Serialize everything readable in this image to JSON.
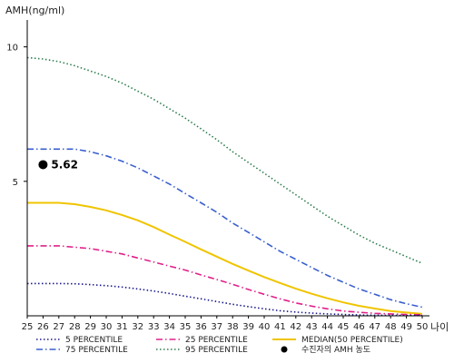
{
  "chart_data": {
    "type": "line",
    "ylabel": "AMH(ng/ml)",
    "xlabel": "나이",
    "xlim": [
      25,
      50
    ],
    "ylim": [
      0,
      11
    ],
    "x_ticks": [
      25,
      26,
      27,
      28,
      29,
      30,
      31,
      32,
      33,
      34,
      35,
      36,
      37,
      38,
      39,
      40,
      41,
      42,
      43,
      44,
      45,
      46,
      47,
      48,
      49,
      50
    ],
    "y_ticks": [
      5,
      10
    ],
    "x": [
      25,
      26,
      27,
      28,
      29,
      30,
      31,
      32,
      33,
      34,
      35,
      36,
      37,
      38,
      39,
      40,
      41,
      42,
      43,
      44,
      45,
      46,
      47,
      48,
      49,
      50
    ],
    "series": [
      {
        "name": "95 PERCENTILE",
        "color": "#2e7d4f",
        "dash": "dotted",
        "values": [
          9.6,
          9.55,
          9.45,
          9.3,
          9.1,
          8.9,
          8.65,
          8.35,
          8.05,
          7.7,
          7.35,
          6.95,
          6.55,
          6.1,
          5.7,
          5.3,
          4.9,
          4.5,
          4.1,
          3.7,
          3.35,
          3.0,
          2.7,
          2.45,
          2.2,
          1.95
        ]
      },
      {
        "name": "75 PERCENTILE",
        "color": "#3a5fcd",
        "dash": "dashdot",
        "values": [
          6.2,
          6.2,
          6.2,
          6.2,
          6.1,
          5.95,
          5.75,
          5.5,
          5.2,
          4.9,
          4.55,
          4.2,
          3.85,
          3.45,
          3.1,
          2.75,
          2.4,
          2.1,
          1.8,
          1.5,
          1.25,
          1.0,
          0.8,
          0.6,
          0.45,
          0.32
        ]
      },
      {
        "name": "MEDIAN(50 PERCENTILE)",
        "color": "#f0c400",
        "dash": "solid",
        "values": [
          4.2,
          4.2,
          4.2,
          4.15,
          4.05,
          3.92,
          3.75,
          3.55,
          3.3,
          3.02,
          2.75,
          2.47,
          2.2,
          1.93,
          1.68,
          1.44,
          1.22,
          1.01,
          0.82,
          0.65,
          0.5,
          0.37,
          0.27,
          0.18,
          0.12,
          0.07
        ]
      },
      {
        "name": "25 PERCENTILE",
        "color": "#e0218a",
        "dash": "dashdot",
        "values": [
          2.6,
          2.6,
          2.6,
          2.55,
          2.5,
          2.4,
          2.3,
          2.15,
          2.0,
          1.85,
          1.7,
          1.52,
          1.35,
          1.17,
          0.98,
          0.8,
          0.63,
          0.48,
          0.36,
          0.26,
          0.18,
          0.13,
          0.09,
          0.07,
          0.05,
          0.04
        ]
      },
      {
        "name": "5 PERCENTILE",
        "color": "#1a1a8c",
        "dash": "dotted",
        "values": [
          1.2,
          1.2,
          1.2,
          1.19,
          1.16,
          1.12,
          1.07,
          1.0,
          0.92,
          0.83,
          0.73,
          0.63,
          0.53,
          0.43,
          0.34,
          0.26,
          0.19,
          0.14,
          0.1,
          0.07,
          0.05,
          0.03,
          0.02,
          0.02,
          0.01,
          0.01
        ]
      }
    ],
    "point": {
      "name": "수진자의 AMH 농도",
      "x": 26,
      "y": 5.62,
      "label": "5.62",
      "color": "#000000"
    },
    "legend": {
      "placement": "bottom",
      "items": [
        {
          "label": "5 PERCENTILE",
          "color": "#1a1a8c",
          "dash": "dotted"
        },
        {
          "label": "25 PERCENTILE",
          "color": "#e0218a",
          "dash": "dashdot"
        },
        {
          "label": "MEDIAN(50 PERCENTILE)",
          "color": "#f0c400",
          "dash": "solid"
        },
        {
          "label": "75 PERCENTILE",
          "color": "#3a5fcd",
          "dash": "dashdot"
        },
        {
          "label": "95 PERCENTILE",
          "color": "#2e7d4f",
          "dash": "dotted"
        },
        {
          "label": "수진자의 AMH 농도",
          "color": "#000000",
          "dash": "marker"
        }
      ]
    },
    "grid": false
  }
}
